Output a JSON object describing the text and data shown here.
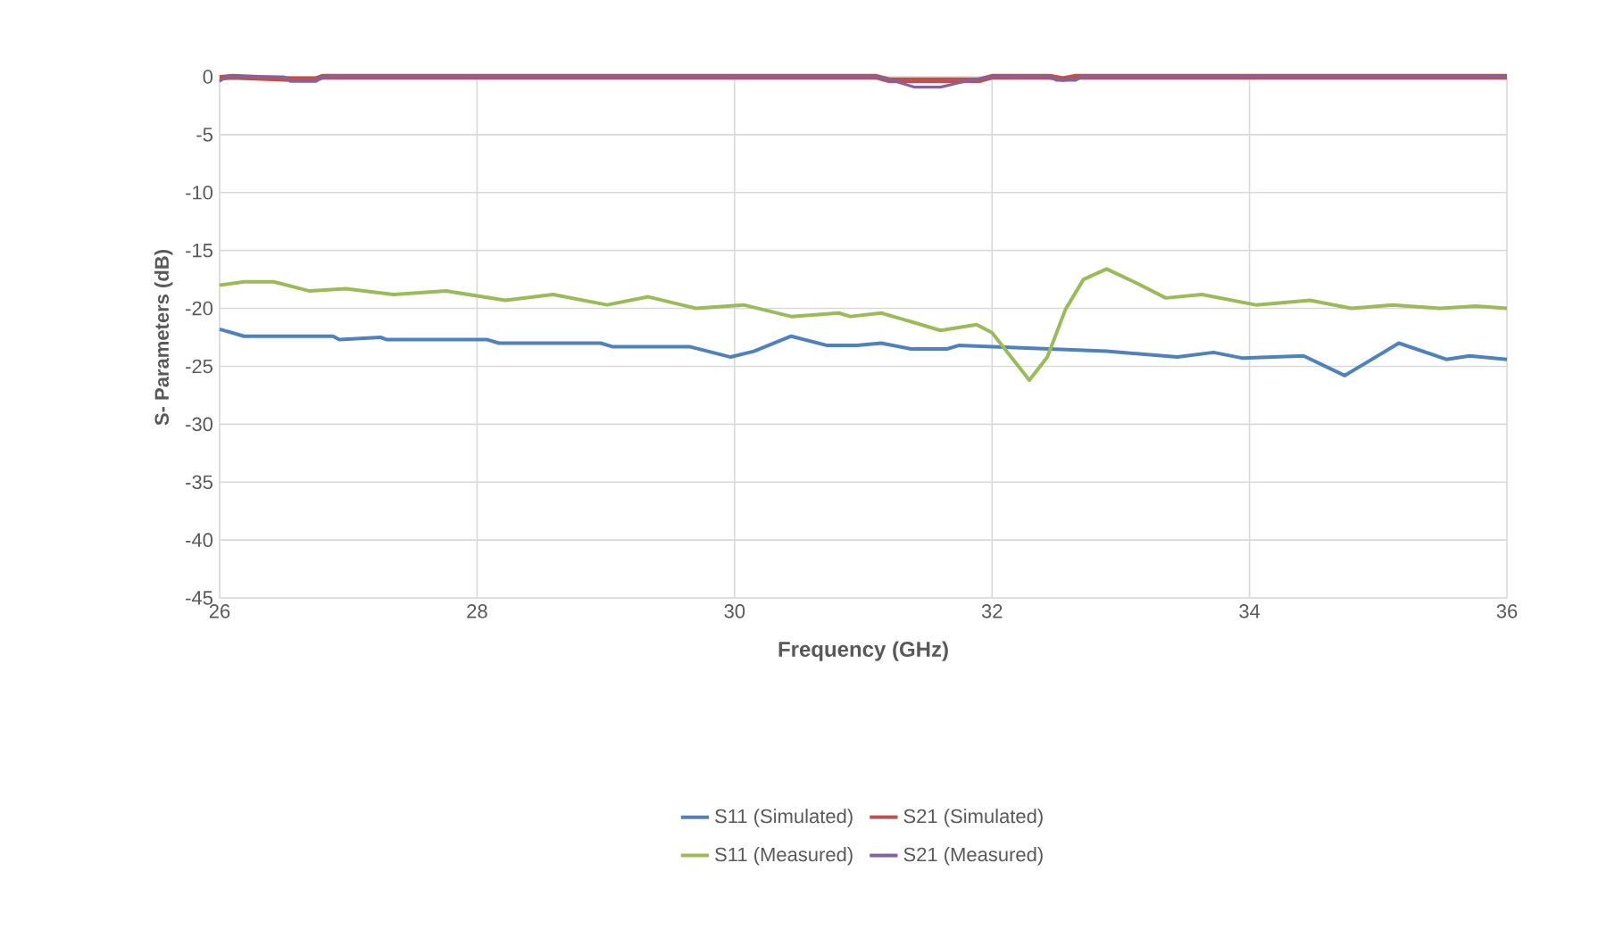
{
  "chart_data": {
    "type": "line",
    "xlabel": "Frequency (GHz)",
    "ylabel": "S- Parameters (dB)",
    "xlim": [
      26,
      36
    ],
    "xticks": [
      26,
      28,
      30,
      32,
      34,
      36
    ],
    "ylim": [
      -45,
      0
    ],
    "yticks": [
      0,
      -5,
      -10,
      -15,
      -20,
      -25,
      -30,
      -35,
      -40,
      -45
    ],
    "grid": true,
    "legend": "bottom",
    "series": [
      {
        "name": "S11 (Simulated)",
        "color": "#4f81bd",
        "x": [
          26.0,
          26.19,
          26.88,
          26.93,
          27.25,
          27.3,
          28.08,
          28.17,
          28.96,
          29.05,
          29.65,
          29.97,
          30.15,
          30.44,
          30.72,
          30.95,
          31.14,
          31.37,
          31.65,
          31.74,
          32.89,
          33.44,
          33.72,
          33.95,
          34.42,
          34.74,
          35.16,
          35.53,
          35.71,
          36.0
        ],
        "values": [
          -21.8,
          -22.4,
          -22.4,
          -22.7,
          -22.5,
          -22.7,
          -22.7,
          -23.0,
          -23.0,
          -23.3,
          -23.3,
          -24.2,
          -23.7,
          -22.4,
          -23.2,
          -23.2,
          -23.0,
          -23.5,
          -23.5,
          -23.2,
          -23.7,
          -24.2,
          -23.8,
          -24.3,
          -24.1,
          -25.8,
          -23.0,
          -24.4,
          -24.1,
          -24.4
        ]
      },
      {
        "name": "S21  (Simulated)",
        "color": "#c0504d",
        "x": [
          26.0,
          26.1,
          26.55,
          26.75,
          26.8,
          31.1,
          31.2,
          31.9,
          32.0,
          32.45,
          32.55,
          32.65,
          36.0
        ],
        "values": [
          -0.1,
          0,
          -0.2,
          -0.2,
          0,
          0,
          -0.3,
          -0.3,
          0,
          0,
          -0.2,
          0,
          0
        ]
      },
      {
        "name": "S11 (Measured)",
        "color": "#9bbb59",
        "x": [
          26.0,
          26.19,
          26.42,
          26.7,
          26.98,
          27.35,
          27.76,
          28.22,
          28.59,
          29.01,
          29.33,
          29.7,
          30.07,
          30.44,
          30.81,
          30.9,
          31.14,
          31.6,
          31.88,
          32.0,
          32.29,
          32.43,
          32.57,
          32.71,
          32.89,
          33.12,
          33.35,
          33.63,
          34.05,
          34.47,
          34.79,
          35.11,
          35.48,
          35.76,
          36.0
        ],
        "values": [
          -18.0,
          -17.7,
          -17.7,
          -18.5,
          -18.3,
          -18.8,
          -18.5,
          -19.3,
          -18.8,
          -19.7,
          -19.0,
          -20.0,
          -19.7,
          -20.7,
          -20.4,
          -20.7,
          -20.4,
          -21.9,
          -21.4,
          -22.1,
          -26.2,
          -24.2,
          -20.1,
          -17.5,
          -16.6,
          -17.8,
          -19.1,
          -18.8,
          -19.7,
          -19.3,
          -20.0,
          -19.7,
          -20.0,
          -19.8,
          -20.0
        ]
      },
      {
        "name": "S21 (Measured)",
        "color": "#8064a2",
        "x": [
          26.0,
          26.05,
          26.5,
          26.55,
          26.75,
          26.8,
          31.1,
          31.25,
          31.4,
          31.6,
          31.75,
          31.9,
          32.0,
          32.45,
          32.5,
          32.65,
          32.7,
          36.0
        ],
        "values": [
          -0.4,
          0,
          0,
          -0.4,
          -0.4,
          0,
          0,
          -0.4,
          -0.9,
          -0.9,
          -0.5,
          -0.2,
          0,
          0,
          -0.3,
          -0.3,
          0,
          0
        ]
      }
    ]
  }
}
